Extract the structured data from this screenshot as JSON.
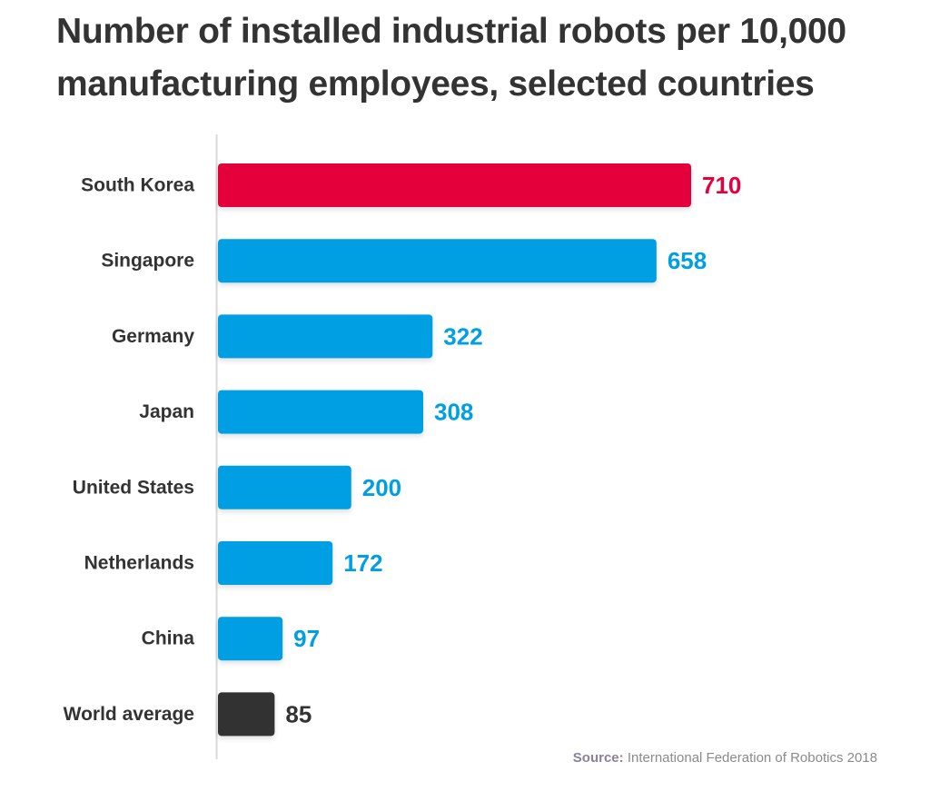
{
  "chart_data": {
    "type": "bar",
    "orientation": "horizontal",
    "title": "Number of installed industrial robots per 10,000 manufacturing employees, selected countries",
    "categories": [
      "South Korea",
      "Singapore",
      "Germany",
      "Japan",
      "United States",
      "Netherlands",
      "China",
      "World average"
    ],
    "values": [
      710,
      658,
      322,
      308,
      200,
      172,
      97,
      85
    ],
    "bar_colors": [
      "#e4003a",
      "#009fe3",
      "#009fe3",
      "#009fe3",
      "#009fe3",
      "#009fe3",
      "#009fe3",
      "#333333"
    ],
    "label_colors": [
      "#e4003a",
      "#009fe3",
      "#009fe3",
      "#009fe3",
      "#009fe3",
      "#009fe3",
      "#009fe3",
      "#333333"
    ],
    "xlim": [
      0,
      710
    ],
    "grid": false,
    "legend": "none"
  },
  "source": {
    "label": "Source:",
    "text": "International Federation of Robotics 2018"
  }
}
